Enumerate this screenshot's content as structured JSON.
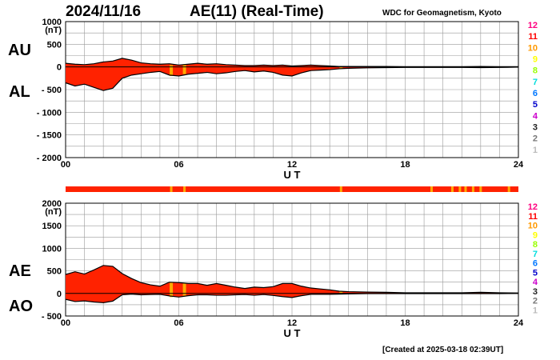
{
  "header": {
    "date": "2024/11/16",
    "title": "AE(11) (Real-Time)",
    "org": "WDC for Geomagnetism, Kyoto"
  },
  "footer": {
    "created": "[Created at 2025-03-18 02:39UT]"
  },
  "labels": {
    "au": "AU",
    "al": "AL",
    "ae": "AE",
    "ao": "AO"
  },
  "colors": {
    "fill": "#ff2200",
    "envelope": "#000000",
    "grid": "#999999",
    "flag_orange": "#ffaa00"
  },
  "station_count_legend": [
    {
      "value": "12",
      "color": "#ff0080"
    },
    {
      "value": "11",
      "color": "#ff0000"
    },
    {
      "value": "10",
      "color": "#ff9900"
    },
    {
      "value": "9",
      "color": "#ffff00"
    },
    {
      "value": "8",
      "color": "#99ff00"
    },
    {
      "value": "7",
      "color": "#00dddd"
    },
    {
      "value": "6",
      "color": "#0077ff"
    },
    {
      "value": "5",
      "color": "#0000cc"
    },
    {
      "value": "4",
      "color": "#cc00cc"
    },
    {
      "value": "3",
      "color": "#222222"
    },
    {
      "value": "2",
      "color": "#777777"
    },
    {
      "value": "1",
      "color": "#bbbbbb"
    }
  ],
  "chart_data": [
    {
      "type": "area",
      "panel": "AU/AL",
      "xlabel": "U T",
      "ylabel": "(nT)",
      "xlim": [
        0,
        24
      ],
      "ylim": [
        -2000,
        1000
      ],
      "xticks": [
        "00",
        "06",
        "12",
        "18",
        "24"
      ],
      "yticks": [
        "1000",
        "500",
        "0",
        "- 500",
        "- 1000",
        "- 1500",
        "- 2000"
      ],
      "grid": true,
      "series": [
        {
          "name": "AU",
          "x": [
            0,
            0.5,
            1,
            1.5,
            2,
            2.5,
            3,
            3.5,
            4,
            4.5,
            5,
            5.5,
            6,
            6.5,
            7,
            7.5,
            8,
            8.5,
            9,
            9.5,
            10,
            10.5,
            11,
            11.5,
            12,
            12.5,
            13,
            13.5,
            14,
            14.5,
            15,
            16,
            17,
            18,
            19,
            20,
            21,
            22,
            23,
            24
          ],
          "y": [
            80,
            60,
            50,
            70,
            110,
            130,
            190,
            150,
            90,
            70,
            60,
            70,
            40,
            60,
            80,
            60,
            70,
            50,
            40,
            30,
            30,
            40,
            30,
            40,
            20,
            30,
            40,
            30,
            20,
            10,
            10,
            10,
            10,
            5,
            5,
            5,
            5,
            10,
            5,
            5
          ]
        },
        {
          "name": "AL",
          "x": [
            0,
            0.5,
            1,
            1.5,
            2,
            2.5,
            3,
            3.5,
            4,
            4.5,
            5,
            5.5,
            6,
            6.5,
            7,
            7.5,
            8,
            8.5,
            9,
            9.5,
            10,
            10.5,
            11,
            11.5,
            12,
            12.5,
            13,
            13.5,
            14,
            14.5,
            15,
            16,
            17,
            18,
            19,
            20,
            21,
            22,
            23,
            24
          ],
          "y": [
            -350,
            -420,
            -380,
            -450,
            -520,
            -470,
            -250,
            -180,
            -150,
            -120,
            -100,
            -180,
            -200,
            -160,
            -140,
            -120,
            -150,
            -130,
            -100,
            -80,
            -110,
            -90,
            -120,
            -180,
            -200,
            -130,
            -80,
            -70,
            -60,
            -40,
            -30,
            -20,
            -15,
            -10,
            -10,
            -10,
            -10,
            -15,
            -10,
            -5
          ]
        }
      ]
    },
    {
      "type": "area",
      "panel": "AE/AO",
      "xlabel": "U T",
      "ylabel": "(nT)",
      "xlim": [
        0,
        24
      ],
      "ylim": [
        -500,
        2000
      ],
      "xticks": [
        "00",
        "06",
        "12",
        "18",
        "24"
      ],
      "yticks": [
        "2000",
        "1500",
        "1000",
        "500",
        "0",
        "- 500"
      ],
      "grid": true,
      "series": [
        {
          "name": "AE",
          "x": [
            0,
            0.5,
            1,
            1.5,
            2,
            2.5,
            3,
            3.5,
            4,
            4.5,
            5,
            5.5,
            6,
            6.5,
            7,
            7.5,
            8,
            8.5,
            9,
            9.5,
            10,
            10.5,
            11,
            11.5,
            12,
            12.5,
            13,
            13.5,
            14,
            14.5,
            15,
            16,
            17,
            18,
            19,
            20,
            21,
            22,
            23,
            24
          ],
          "y": [
            420,
            480,
            430,
            520,
            620,
            600,
            440,
            330,
            240,
            190,
            160,
            250,
            240,
            220,
            220,
            180,
            220,
            180,
            140,
            110,
            140,
            130,
            150,
            220,
            220,
            160,
            120,
            100,
            80,
            50,
            40,
            30,
            25,
            15,
            15,
            15,
            15,
            25,
            15,
            10
          ]
        },
        {
          "name": "AO",
          "x": [
            0,
            0.5,
            1,
            1.5,
            2,
            2.5,
            3,
            3.5,
            4,
            4.5,
            5,
            5.5,
            6,
            6.5,
            7,
            7.5,
            8,
            8.5,
            9,
            9.5,
            10,
            10.5,
            11,
            11.5,
            12,
            12.5,
            13,
            13.5,
            14,
            14.5,
            15,
            16,
            17,
            18,
            19,
            20,
            21,
            22,
            23,
            24
          ],
          "y": [
            -130,
            -180,
            -165,
            -190,
            -205,
            -170,
            -30,
            -15,
            -30,
            -25,
            -20,
            -55,
            -80,
            -50,
            -30,
            -30,
            -40,
            -40,
            -30,
            -25,
            -40,
            -25,
            -45,
            -70,
            -90,
            -50,
            -20,
            -20,
            -20,
            -15,
            -10,
            -5,
            -3,
            -3,
            -3,
            -3,
            -3,
            -3,
            -3,
            0
          ]
        }
      ]
    }
  ],
  "flag_hours": [
    5.6,
    6.3,
    14.6,
    19.4,
    20.5,
    20.9,
    21.2,
    21.6,
    22.0,
    23.5
  ]
}
